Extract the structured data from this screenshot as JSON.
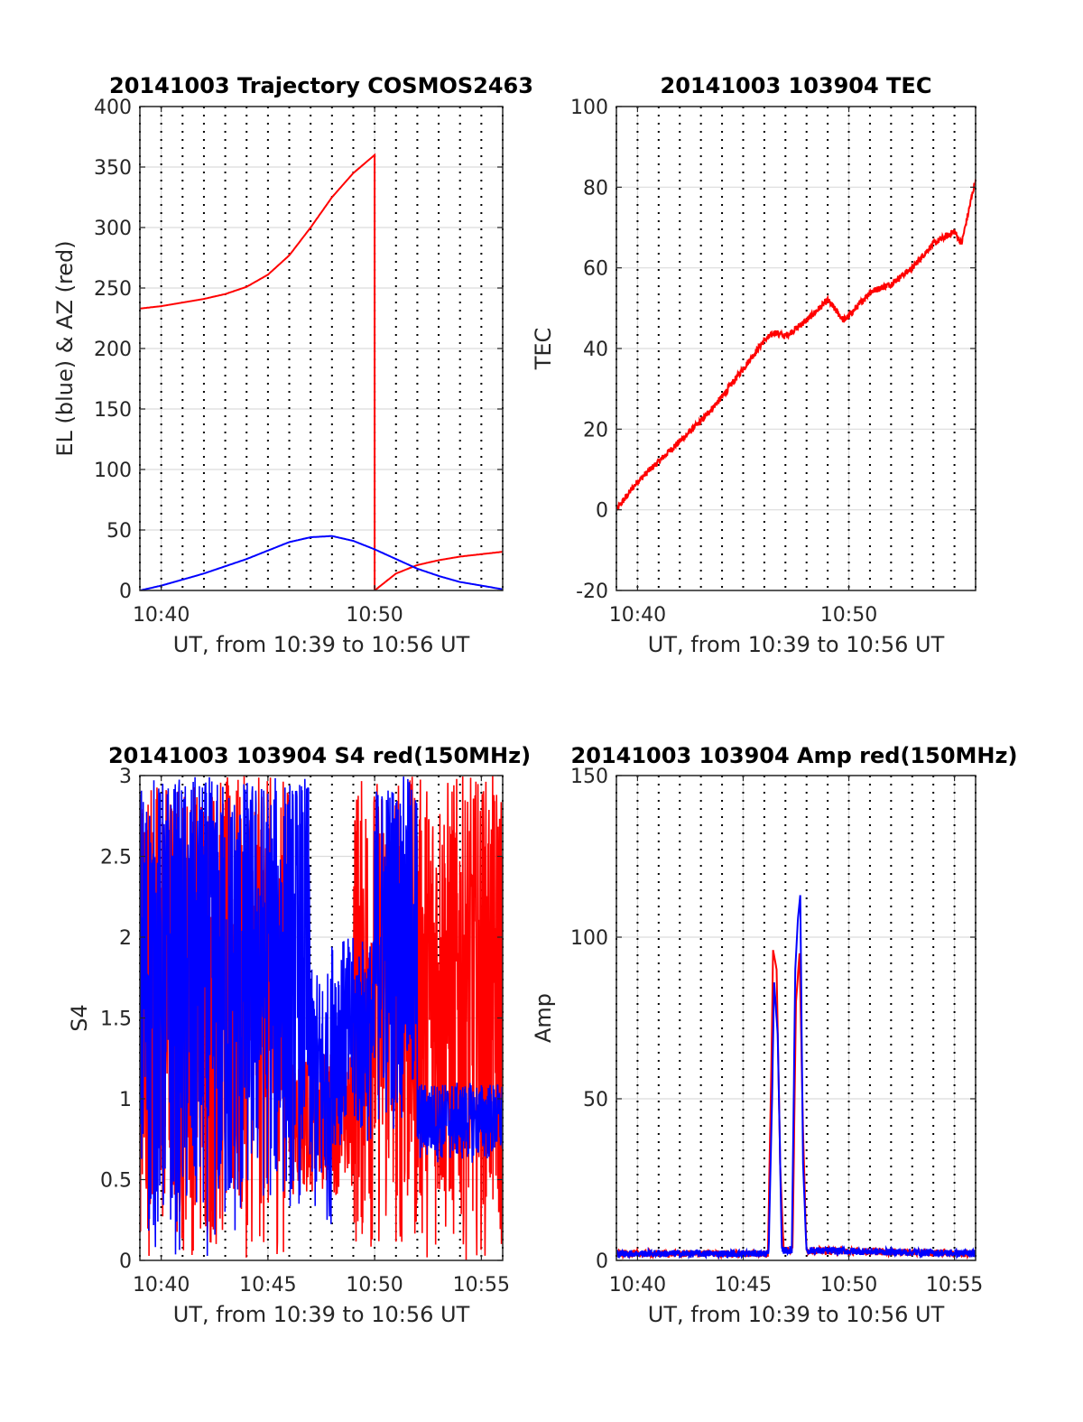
{
  "figure": {
    "background": "#ffffff"
  },
  "chart_data": [
    {
      "id": "trajectory",
      "type": "line",
      "title": "20141003 Trajectory COSMOS2463",
      "xlabel": "UT, from 10:39 to 10:56 UT",
      "ylabel": "EL (blue) & AZ (red)",
      "xlim": [
        "10:39",
        "10:56"
      ],
      "ylim": [
        0,
        400
      ],
      "x_ticks": [
        "10:40",
        "10:50"
      ],
      "y_ticks": [
        0,
        50,
        100,
        150,
        200,
        250,
        300,
        350,
        400
      ],
      "grid": true,
      "dotted_minute_lines": true,
      "series": [
        {
          "color": "#ff0000",
          "points": [
            [
              "10:39",
              233
            ],
            [
              "10:40",
              235
            ],
            [
              "10:41",
              238
            ],
            [
              "10:42",
              241
            ],
            [
              "10:43",
              245
            ],
            [
              "10:44",
              251
            ],
            [
              "10:45",
              261
            ],
            [
              "10:46",
              277
            ],
            [
              "10:47",
              300
            ],
            [
              "10:48",
              325
            ],
            [
              "10:49",
              345
            ],
            [
              "10:50",
              360
            ],
            [
              "10:50",
              0
            ],
            [
              "10:51",
              14
            ],
            [
              "10:52",
              21
            ],
            [
              "10:53",
              25
            ],
            [
              "10:54",
              28
            ],
            [
              "10:55",
              30
            ],
            [
              "10:56",
              32
            ]
          ]
        },
        {
          "color": "#0000ff",
          "points": [
            [
              "10:39",
              0
            ],
            [
              "10:40",
              4
            ],
            [
              "10:41",
              9
            ],
            [
              "10:42",
              14
            ],
            [
              "10:43",
              20
            ],
            [
              "10:44",
              26
            ],
            [
              "10:45",
              33
            ],
            [
              "10:46",
              40
            ],
            [
              "10:47",
              44
            ],
            [
              "10:48",
              45
            ],
            [
              "10:49",
              41
            ],
            [
              "10:50",
              34
            ],
            [
              "10:51",
              26
            ],
            [
              "10:52",
              18
            ],
            [
              "10:53",
              12
            ],
            [
              "10:54",
              7
            ],
            [
              "10:55",
              4
            ],
            [
              "10:56",
              1
            ]
          ]
        }
      ]
    },
    {
      "id": "tec",
      "type": "line",
      "title": "20141003 103904 TEC",
      "xlabel": "UT, from 10:39 to 10:56 UT",
      "ylabel": "TEC",
      "xlim": [
        "10:39",
        "10:56"
      ],
      "ylim": [
        -20,
        100
      ],
      "x_ticks": [
        "10:40",
        "10:50"
      ],
      "y_ticks": [
        -20,
        0,
        20,
        40,
        60,
        80,
        100
      ],
      "grid": true,
      "dotted_minute_lines": true,
      "series": [
        {
          "color": "#ff0000",
          "points": [
            [
              "10:39",
              0
            ],
            [
              "10:40",
              7
            ],
            [
              "10:41",
              12
            ],
            [
              "10:42",
              17
            ],
            [
              "10:43",
              22
            ],
            [
              "10:44",
              28
            ],
            [
              "10:45",
              35
            ],
            [
              "10:46",
              42
            ],
            [
              "10:46:30",
              44
            ],
            [
              "10:47",
              43
            ],
            [
              "10:48",
              47
            ],
            [
              "10:49",
              52
            ],
            [
              "10:49:45",
              47
            ],
            [
              "10:50",
              48
            ],
            [
              "10:51",
              54
            ],
            [
              "10:52",
              56
            ],
            [
              "10:53",
              60
            ],
            [
              "10:54",
              66
            ],
            [
              "10:55",
              69
            ],
            [
              "10:55:20",
              66
            ],
            [
              "10:56",
              82
            ]
          ]
        }
      ]
    },
    {
      "id": "s4",
      "type": "line",
      "title": "20141003 103904 S4 red(150MHz)",
      "xlabel": "UT, from 10:39 to 10:56 UT",
      "ylabel": "S4",
      "xlim": [
        "10:39",
        "10:56"
      ],
      "ylim": [
        0,
        3
      ],
      "x_ticks": [
        "10:40",
        "10:45",
        "10:50",
        "10:55"
      ],
      "y_ticks": [
        0,
        0.5,
        1,
        1.5,
        2,
        2.5,
        3
      ],
      "grid": true,
      "dotted_minute_lines": true,
      "series": [
        {
          "color": "#ff0000",
          "note_shape": "dense noise 0–3 throughout; calmer 10:46–10:49 around 0.5–1.2"
        },
        {
          "color": "#0000ff",
          "note_shape": "dense noise 0–3 before 10:47; ~1.5–2 around 10:48–10:51; ~0.7–1 after 10:52"
        }
      ],
      "series_envelopes": [
        {
          "color": "#ff0000",
          "segments": [
            [
              "10:39",
              "10:46",
              0,
              3
            ],
            [
              "10:46",
              "10:49",
              0.4,
              1.3
            ],
            [
              "10:49",
              "10:56",
              0,
              3
            ]
          ]
        },
        {
          "color": "#0000ff",
          "segments": [
            [
              "10:39",
              "10:44",
              0,
              3
            ],
            [
              "10:44",
              "10:47",
              0.3,
              3
            ],
            [
              "10:47",
              "10:48",
              0.2,
              1.8
            ],
            [
              "10:48",
              "10:50",
              0.7,
              2.0
            ],
            [
              "10:50",
              "10:52",
              0.8,
              3
            ],
            [
              "10:52",
              "10:56",
              0.6,
              1.1
            ]
          ]
        }
      ]
    },
    {
      "id": "amp",
      "type": "line",
      "title": "20141003 103904 Amp red(150MHz)",
      "xlabel": "UT, from 10:39 to 10:56 UT",
      "ylabel": "Amp",
      "xlim": [
        "10:39",
        "10:56"
      ],
      "ylim": [
        0,
        150
      ],
      "x_ticks": [
        "10:40",
        "10:45",
        "10:50",
        "10:55"
      ],
      "y_ticks": [
        0,
        50,
        100,
        150
      ],
      "grid": true,
      "dotted_minute_lines": true,
      "series": [
        {
          "color": "#ff0000",
          "points": [
            [
              "10:39",
              1
            ],
            [
              "10:46:10",
              1
            ],
            [
              "10:46:20",
              60
            ],
            [
              "10:46:25",
              96
            ],
            [
              "10:46:35",
              90
            ],
            [
              "10:46:45",
              30
            ],
            [
              "10:46:55",
              2
            ],
            [
              "10:47:20",
              2
            ],
            [
              "10:47:30",
              80
            ],
            [
              "10:47:40",
              95
            ],
            [
              "10:47:50",
              40
            ],
            [
              "10:48",
              2
            ],
            [
              "10:56",
              1
            ]
          ]
        },
        {
          "color": "#0000ff",
          "points": [
            [
              "10:39",
              1
            ],
            [
              "10:46:12",
              1
            ],
            [
              "10:46:22",
              50
            ],
            [
              "10:46:28",
              86
            ],
            [
              "10:46:38",
              70
            ],
            [
              "10:46:50",
              2
            ],
            [
              "10:47:18",
              2
            ],
            [
              "10:47:28",
              90
            ],
            [
              "10:47:35",
              105
            ],
            [
              "10:47:42",
              113
            ],
            [
              "10:47:50",
              30
            ],
            [
              "10:48",
              2
            ],
            [
              "10:56",
              1
            ]
          ]
        }
      ]
    }
  ]
}
